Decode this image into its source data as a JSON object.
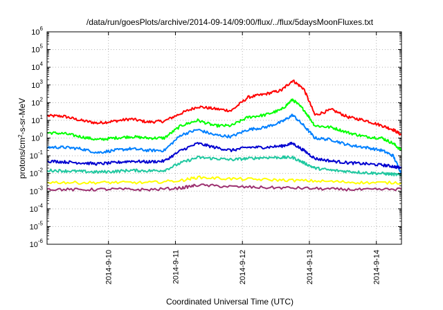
{
  "chart_data": {
    "type": "line",
    "title": "/data/run/goesPlots/archive/2014-09-14/09:00/flux/../flux/5daysMoonFluxes.txt",
    "xlabel": "Coordinated Universal Time (UTC)",
    "ylabel": {
      "base": "protons/cm",
      "sup": "2",
      "rest": "-s-sr-MeV"
    },
    "yscale": "log",
    "ylim": [
      1e-06,
      1000000.0
    ],
    "xlim": [
      "2014-09-09T02:00",
      "2014-09-14T09:00"
    ],
    "grid": true,
    "y_ticks": [
      {
        "value": 1e-06,
        "base": "10",
        "exp": "-6"
      },
      {
        "value": 1e-05,
        "base": "10",
        "exp": "-5"
      },
      {
        "value": 0.0001,
        "base": "10",
        "exp": "-4"
      },
      {
        "value": 0.001,
        "base": "10",
        "exp": "-3"
      },
      {
        "value": 0.01,
        "base": "10",
        "exp": "-2"
      },
      {
        "value": 0.1,
        "base": "10",
        "exp": "-1"
      },
      {
        "value": 1,
        "base": "10",
        "exp": "0"
      },
      {
        "value": 10,
        "base": "10",
        "exp": "1"
      },
      {
        "value": 100,
        "base": "10",
        "exp": "2"
      },
      {
        "value": 1000,
        "base": "10",
        "exp": "3"
      },
      {
        "value": 10000,
        "base": "10",
        "exp": "4"
      },
      {
        "value": 100000,
        "base": "10",
        "exp": "5"
      },
      {
        "value": 1000000,
        "base": "10",
        "exp": "6"
      }
    ],
    "x_ticks": [
      {
        "date": "2014-09-10T00:00",
        "label": "2014-9-10"
      },
      {
        "date": "2014-09-11T00:00",
        "label": "2014-9-11"
      },
      {
        "date": "2014-09-12T00:00",
        "label": "2014-9-12"
      },
      {
        "date": "2014-09-13T00:00",
        "label": "2014-9-13"
      },
      {
        "date": "2014-09-14T00:00",
        "label": "2014-9-14"
      }
    ],
    "series": [
      {
        "color": "#ff0000",
        "points": [
          [
            "2014-09-09T02:00",
            18
          ],
          [
            "2014-09-09T08:00",
            17
          ],
          [
            "2014-09-09T14:00",
            10
          ],
          [
            "2014-09-09T20:00",
            7
          ],
          [
            "2014-09-10T02:00",
            9
          ],
          [
            "2014-09-10T08:00",
            12
          ],
          [
            "2014-09-10T14:00",
            8
          ],
          [
            "2014-09-10T20:00",
            9
          ],
          [
            "2014-09-11T02:00",
            25
          ],
          [
            "2014-09-11T08:00",
            60
          ],
          [
            "2014-09-11T14:00",
            45
          ],
          [
            "2014-09-11T20:00",
            35
          ],
          [
            "2014-09-12T02:00",
            200
          ],
          [
            "2014-09-12T08:00",
            300
          ],
          [
            "2014-09-12T14:00",
            500
          ],
          [
            "2014-09-12T18:00",
            1800
          ],
          [
            "2014-09-12T22:00",
            600
          ],
          [
            "2014-09-13T02:00",
            20
          ],
          [
            "2014-09-13T08:00",
            40
          ],
          [
            "2014-09-13T14:00",
            15
          ],
          [
            "2014-09-13T20:00",
            10
          ],
          [
            "2014-09-14T02:00",
            5
          ],
          [
            "2014-09-14T06:00",
            3
          ],
          [
            "2014-09-14T09:00",
            1.5
          ]
        ]
      },
      {
        "color": "#00ff00",
        "points": [
          [
            "2014-09-09T02:00",
            2
          ],
          [
            "2014-09-09T08:00",
            1.8
          ],
          [
            "2014-09-09T14:00",
            1.2
          ],
          [
            "2014-09-09T20:00",
            0.8
          ],
          [
            "2014-09-10T02:00",
            1
          ],
          [
            "2014-09-10T08:00",
            1.2
          ],
          [
            "2014-09-10T14:00",
            1
          ],
          [
            "2014-09-10T20:00",
            1
          ],
          [
            "2014-09-11T02:00",
            5
          ],
          [
            "2014-09-11T08:00",
            10
          ],
          [
            "2014-09-11T14:00",
            5
          ],
          [
            "2014-09-11T20:00",
            5
          ],
          [
            "2014-09-12T02:00",
            15
          ],
          [
            "2014-09-12T08:00",
            20
          ],
          [
            "2014-09-12T14:00",
            40
          ],
          [
            "2014-09-12T18:00",
            150
          ],
          [
            "2014-09-12T22:00",
            40
          ],
          [
            "2014-09-13T02:00",
            5
          ],
          [
            "2014-09-13T08:00",
            4
          ],
          [
            "2014-09-13T14:00",
            2
          ],
          [
            "2014-09-13T20:00",
            1.2
          ],
          [
            "2014-09-14T02:00",
            1
          ],
          [
            "2014-09-14T06:00",
            0.5
          ],
          [
            "2014-09-14T09:00",
            0.2
          ]
        ]
      },
      {
        "color": "#0080ff",
        "points": [
          [
            "2014-09-09T02:00",
            0.3
          ],
          [
            "2014-09-09T08:00",
            0.3
          ],
          [
            "2014-09-09T14:00",
            0.25
          ],
          [
            "2014-09-09T20:00",
            0.15
          ],
          [
            "2014-09-10T02:00",
            0.2
          ],
          [
            "2014-09-10T08:00",
            0.25
          ],
          [
            "2014-09-10T14:00",
            0.2
          ],
          [
            "2014-09-10T20:00",
            0.2
          ],
          [
            "2014-09-11T02:00",
            1.5
          ],
          [
            "2014-09-11T08:00",
            3
          ],
          [
            "2014-09-11T14:00",
            1.5
          ],
          [
            "2014-09-11T20:00",
            1.2
          ],
          [
            "2014-09-12T02:00",
            3
          ],
          [
            "2014-09-12T08:00",
            4
          ],
          [
            "2014-09-12T14:00",
            8
          ],
          [
            "2014-09-12T18:00",
            20
          ],
          [
            "2014-09-12T22:00",
            5
          ],
          [
            "2014-09-13T02:00",
            1
          ],
          [
            "2014-09-13T08:00",
            0.8
          ],
          [
            "2014-09-13T14:00",
            0.4
          ],
          [
            "2014-09-13T20:00",
            0.3
          ],
          [
            "2014-09-14T02:00",
            0.2
          ],
          [
            "2014-09-14T06:00",
            0.1
          ],
          [
            "2014-09-14T09:00",
            0.01
          ]
        ]
      },
      {
        "color": "#0000d0",
        "points": [
          [
            "2014-09-09T02:00",
            0.05
          ],
          [
            "2014-09-09T08:00",
            0.045
          ],
          [
            "2014-09-09T14:00",
            0.04
          ],
          [
            "2014-09-09T20:00",
            0.035
          ],
          [
            "2014-09-10T02:00",
            0.04
          ],
          [
            "2014-09-10T08:00",
            0.05
          ],
          [
            "2014-09-10T14:00",
            0.045
          ],
          [
            "2014-09-10T20:00",
            0.05
          ],
          [
            "2014-09-11T02:00",
            0.2
          ],
          [
            "2014-09-11T08:00",
            0.5
          ],
          [
            "2014-09-11T14:00",
            0.3
          ],
          [
            "2014-09-11T20:00",
            0.2
          ],
          [
            "2014-09-12T02:00",
            0.3
          ],
          [
            "2014-09-12T08:00",
            0.3
          ],
          [
            "2014-09-12T14:00",
            0.35
          ],
          [
            "2014-09-12T18:00",
            0.5
          ],
          [
            "2014-09-12T22:00",
            0.2
          ],
          [
            "2014-09-13T02:00",
            0.07
          ],
          [
            "2014-09-13T08:00",
            0.05
          ],
          [
            "2014-09-13T14:00",
            0.04
          ],
          [
            "2014-09-13T20:00",
            0.035
          ],
          [
            "2014-09-14T02:00",
            0.03
          ],
          [
            "2014-09-14T06:00",
            0.025
          ],
          [
            "2014-09-14T09:00",
            0.02
          ]
        ]
      },
      {
        "color": "#20c8a0",
        "points": [
          [
            "2014-09-09T02:00",
            0.015
          ],
          [
            "2014-09-09T08:00",
            0.014
          ],
          [
            "2014-09-09T14:00",
            0.013
          ],
          [
            "2014-09-09T20:00",
            0.012
          ],
          [
            "2014-09-10T02:00",
            0.013
          ],
          [
            "2014-09-10T08:00",
            0.015
          ],
          [
            "2014-09-10T14:00",
            0.014
          ],
          [
            "2014-09-10T20:00",
            0.015
          ],
          [
            "2014-09-11T02:00",
            0.04
          ],
          [
            "2014-09-11T08:00",
            0.08
          ],
          [
            "2014-09-11T14:00",
            0.07
          ],
          [
            "2014-09-11T20:00",
            0.06
          ],
          [
            "2014-09-12T02:00",
            0.07
          ],
          [
            "2014-09-12T08:00",
            0.08
          ],
          [
            "2014-09-12T14:00",
            0.08
          ],
          [
            "2014-09-12T18:00",
            0.08
          ],
          [
            "2014-09-12T22:00",
            0.04
          ],
          [
            "2014-09-13T02:00",
            0.02
          ],
          [
            "2014-09-13T08:00",
            0.015
          ],
          [
            "2014-09-13T14:00",
            0.013
          ],
          [
            "2014-09-13T20:00",
            0.011
          ],
          [
            "2014-09-14T02:00",
            0.01
          ],
          [
            "2014-09-14T06:00",
            0.009
          ],
          [
            "2014-09-14T09:00",
            0.008
          ]
        ]
      },
      {
        "color": "#ffff00",
        "points": [
          [
            "2014-09-09T02:00",
            0.0032
          ],
          [
            "2014-09-09T14:00",
            0.003
          ],
          [
            "2014-09-10T02:00",
            0.0031
          ],
          [
            "2014-09-10T14:00",
            0.003
          ],
          [
            "2014-09-11T02:00",
            0.004
          ],
          [
            "2014-09-11T08:00",
            0.006
          ],
          [
            "2014-09-11T20:00",
            0.005
          ],
          [
            "2014-09-12T08:00",
            0.0045
          ],
          [
            "2014-09-12T20:00",
            0.004
          ],
          [
            "2014-09-13T08:00",
            0.0035
          ],
          [
            "2014-09-13T20:00",
            0.003
          ],
          [
            "2014-09-14T09:00",
            0.003
          ]
        ]
      },
      {
        "color": "#9c3070",
        "points": [
          [
            "2014-09-09T02:00",
            0.0013
          ],
          [
            "2014-09-09T14:00",
            0.0012
          ],
          [
            "2014-09-10T02:00",
            0.0013
          ],
          [
            "2014-09-10T14:00",
            0.0012
          ],
          [
            "2014-09-11T02:00",
            0.0015
          ],
          [
            "2014-09-11T08:00",
            0.0022
          ],
          [
            "2014-09-11T20:00",
            0.0018
          ],
          [
            "2014-09-12T08:00",
            0.0016
          ],
          [
            "2014-09-12T20:00",
            0.0015
          ],
          [
            "2014-09-13T08:00",
            0.0013
          ],
          [
            "2014-09-13T20:00",
            0.0012
          ],
          [
            "2014-09-14T09:00",
            0.0013
          ]
        ]
      }
    ]
  }
}
